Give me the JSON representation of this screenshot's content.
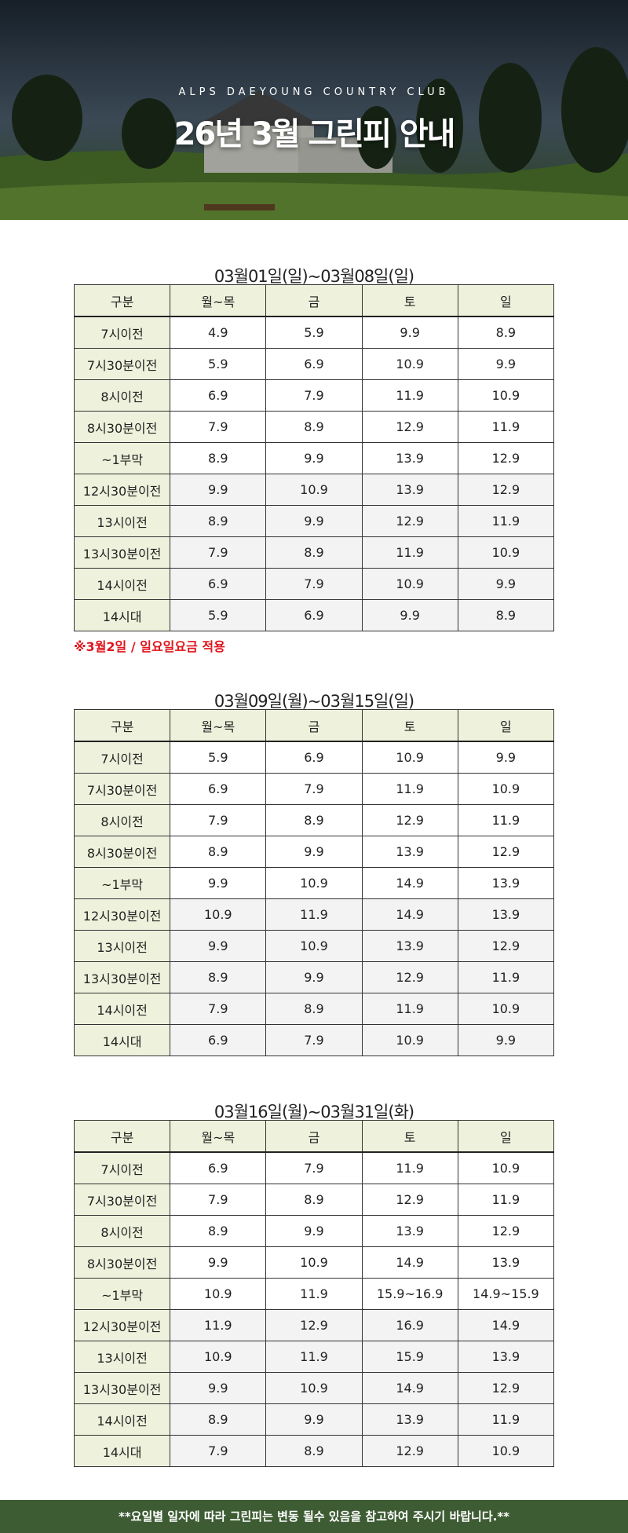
{
  "header": {
    "subtitle": "ALPS DAEYOUNG COUNTRY CLUB",
    "title": "26년 3월 그린피 안내"
  },
  "sections": [
    {
      "title": "03월01일(일)~03월08일(일)",
      "columns": [
        "구분",
        "월~목",
        "금",
        "토",
        "일"
      ],
      "rows": [
        [
          "7시이전",
          "4.9",
          "5.9",
          "9.9",
          "8.9"
        ],
        [
          "7시30분이전",
          "5.9",
          "6.9",
          "10.9",
          "9.9"
        ],
        [
          "8시이전",
          "6.9",
          "7.9",
          "11.9",
          "10.9"
        ],
        [
          "8시30분이전",
          "7.9",
          "8.9",
          "12.9",
          "11.9"
        ],
        [
          "~1부막",
          "8.9",
          "9.9",
          "13.9",
          "12.9"
        ],
        [
          "12시30분이전",
          "9.9",
          "10.9",
          "13.9",
          "12.9"
        ],
        [
          "13시이전",
          "8.9",
          "9.9",
          "12.9",
          "11.9"
        ],
        [
          "13시30분이전",
          "7.9",
          "8.9",
          "11.9",
          "10.9"
        ],
        [
          "14시이전",
          "6.9",
          "7.9",
          "10.9",
          "9.9"
        ],
        [
          "14시대",
          "5.9",
          "6.9",
          "9.9",
          "8.9"
        ]
      ],
      "note": "※3월2일 / 일요일요금 적용"
    },
    {
      "title": "03월09일(월)~03월15일(일)",
      "columns": [
        "구분",
        "월~목",
        "금",
        "토",
        "일"
      ],
      "rows": [
        [
          "7시이전",
          "5.9",
          "6.9",
          "10.9",
          "9.9"
        ],
        [
          "7시30분이전",
          "6.9",
          "7.9",
          "11.9",
          "10.9"
        ],
        [
          "8시이전",
          "7.9",
          "8.9",
          "12.9",
          "11.9"
        ],
        [
          "8시30분이전",
          "8.9",
          "9.9",
          "13.9",
          "12.9"
        ],
        [
          "~1부막",
          "9.9",
          "10.9",
          "14.9",
          "13.9"
        ],
        [
          "12시30분이전",
          "10.9",
          "11.9",
          "14.9",
          "13.9"
        ],
        [
          "13시이전",
          "9.9",
          "10.9",
          "13.9",
          "12.9"
        ],
        [
          "13시30분이전",
          "8.9",
          "9.9",
          "12.9",
          "11.9"
        ],
        [
          "14시이전",
          "7.9",
          "8.9",
          "11.9",
          "10.9"
        ],
        [
          "14시대",
          "6.9",
          "7.9",
          "10.9",
          "9.9"
        ]
      ]
    },
    {
      "title": "03월16일(월)~03월31일(화)",
      "columns": [
        "구분",
        "월~목",
        "금",
        "토",
        "일"
      ],
      "rows": [
        [
          "7시이전",
          "6.9",
          "7.9",
          "11.9",
          "10.9"
        ],
        [
          "7시30분이전",
          "7.9",
          "8.9",
          "12.9",
          "11.9"
        ],
        [
          "8시이전",
          "8.9",
          "9.9",
          "13.9",
          "12.9"
        ],
        [
          "8시30분이전",
          "9.9",
          "10.9",
          "14.9",
          "13.9"
        ],
        [
          "~1부막",
          "10.9",
          "11.9",
          "15.9~16.9",
          "14.9~15.9"
        ],
        [
          "12시30분이전",
          "11.9",
          "12.9",
          "16.9",
          "14.9"
        ],
        [
          "13시이전",
          "10.9",
          "11.9",
          "15.9",
          "13.9"
        ],
        [
          "13시30분이전",
          "9.9",
          "10.9",
          "14.9",
          "12.9"
        ],
        [
          "14시이전",
          "8.9",
          "9.9",
          "13.9",
          "11.9"
        ],
        [
          "14시대",
          "7.9",
          "8.9",
          "12.9",
          "10.9"
        ]
      ]
    }
  ],
  "footer": "**요일별 일자에 따라 그린피는 변동 될수 있음을 참고하여 주시기 바랍니다.**"
}
